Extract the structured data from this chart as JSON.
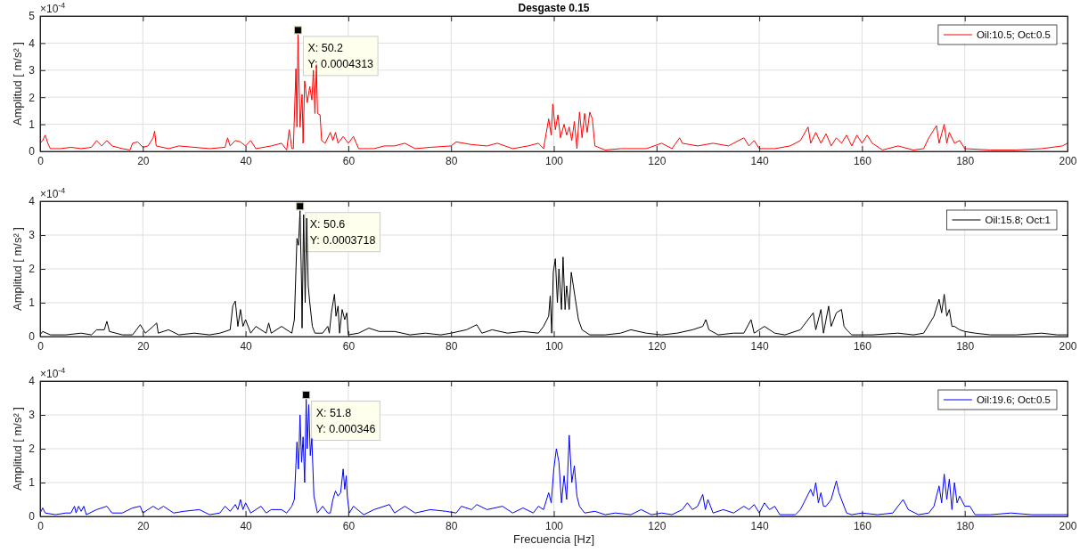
{
  "chart_data": [
    {
      "type": "line",
      "title": "Desgaste 0.15",
      "ylabel": "Amplitud [ m/s² ]",
      "xlim": [
        0,
        200
      ],
      "xticks": [
        0,
        20,
        40,
        60,
        80,
        100,
        120,
        140,
        160,
        180,
        200
      ],
      "ylim": [
        0,
        5
      ],
      "yticks": [
        0,
        1,
        2,
        3,
        4,
        5
      ],
      "grid": true,
      "legend": "top right",
      "annotations": [
        "×10$^{-4}$",
        {
          "text": "X: 50.2\nY: 0.0004313",
          "x": 50.2,
          "y": 4.313
        }
      ],
      "series": [
        {
          "name": "Oil:10.5; Oct:0.5",
          "color": "#ff0000",
          "x": [
            0,
            0.5,
            1,
            1.5,
            2,
            4,
            6,
            8,
            10,
            11,
            12,
            13,
            14,
            16,
            17.5,
            18,
            19,
            20,
            21,
            22,
            22.3,
            22.6,
            25,
            27,
            30,
            33,
            36,
            36.5,
            37,
            38,
            39,
            40,
            41,
            42,
            45,
            47,
            48,
            48.5,
            49,
            49.3,
            49.8,
            50,
            50.2,
            50.6,
            51,
            51.2,
            51.5,
            52,
            52.5,
            52.9,
            53.2,
            53.5,
            53.8,
            54,
            54.5,
            54.8,
            55.5,
            56.5,
            57,
            57.5,
            58,
            59,
            60,
            61,
            62,
            65,
            67,
            69,
            71,
            73,
            76,
            80,
            81,
            84,
            87,
            89,
            92,
            95,
            97,
            98,
            99,
            99.5,
            99.8,
            100.3,
            100.8,
            101.3,
            102,
            102.5,
            103,
            103.5,
            104,
            104.5,
            105,
            105.5,
            106,
            106.5,
            107,
            107.5,
            108,
            110,
            113,
            118,
            121,
            123,
            124.5,
            125,
            128,
            131,
            134,
            137,
            138,
            139,
            140,
            143,
            146,
            148,
            149.5,
            150,
            151,
            152,
            153,
            154,
            155,
            156,
            157,
            158,
            159,
            160,
            161,
            162,
            164,
            167,
            170,
            172,
            173,
            174.5,
            175,
            176,
            176.5,
            177,
            178,
            179,
            180,
            185,
            190,
            195,
            199,
            200
          ],
          "values": [
            0.3,
            0.4,
            0.6,
            0.3,
            0.1,
            0.1,
            0.15,
            0.1,
            0.15,
            0.4,
            0.2,
            0.4,
            0.2,
            0.1,
            0.05,
            0.3,
            0.35,
            0.15,
            0.2,
            0.5,
            0.75,
            0.2,
            0.1,
            0.2,
            0.15,
            0.1,
            0.15,
            0.5,
            0.2,
            0.4,
            0.35,
            0.2,
            0.4,
            0.1,
            0.2,
            0.3,
            0.05,
            0.8,
            0.1,
            0.1,
            3.05,
            0.9,
            4.313,
            0.9,
            2.1,
            0.3,
            2.6,
            1.8,
            2.4,
            1.9,
            3.0,
            1.4,
            3.2,
            1.4,
            1.35,
            0.4,
            0.3,
            0.7,
            0.4,
            0.7,
            0.3,
            0.55,
            0.3,
            0.55,
            0.1,
            0.1,
            0.2,
            0.2,
            0.3,
            0.1,
            0.15,
            0.2,
            0.35,
            0.25,
            0.2,
            0.3,
            0.1,
            0.2,
            0.3,
            0.1,
            1.2,
            0.6,
            1.75,
            0.8,
            1.35,
            0.5,
            1.0,
            0.6,
            0.9,
            0.4,
            1.1,
            0.1,
            1.45,
            0.5,
            1.4,
            0.7,
            1.45,
            1.2,
            0.2,
            0.05,
            0.1,
            0.1,
            0.3,
            0.1,
            0.5,
            0.3,
            0.2,
            0.3,
            0.2,
            0.5,
            0.2,
            0.4,
            0.1,
            0.1,
            0.2,
            0.4,
            0.9,
            0.3,
            0.7,
            0.3,
            0.65,
            0.2,
            0.5,
            0.3,
            0.6,
            0.2,
            0.6,
            0.3,
            0.6,
            0.3,
            0.05,
            0.2,
            0.05,
            0.1,
            0.5,
            0.95,
            0.3,
            1.0,
            0.3,
            0.7,
            0.3,
            0.4,
            0.1,
            0.05,
            0.05,
            0.1,
            0.2,
            0.3
          ]
        }
      ]
    },
    {
      "type": "line",
      "ylabel": "Amplitud [ m/s² ]",
      "xlim": [
        0,
        200
      ],
      "xticks": [
        0,
        20,
        40,
        60,
        80,
        100,
        120,
        140,
        160,
        180,
        200
      ],
      "ylim": [
        0,
        4
      ],
      "yticks": [
        0,
        1,
        2,
        3,
        4
      ],
      "grid": true,
      "legend": "top right",
      "annotations": [
        "×10$^{-4}$",
        {
          "text": "X: 50.6\nY: 0.0003718",
          "x": 50.6,
          "y": 3.718
        }
      ],
      "series": [
        {
          "name": "Oil:15.8; Oct:1",
          "color": "#000000",
          "x": [
            0,
            0.5,
            2,
            5,
            8,
            10,
            11,
            12.5,
            13,
            13.5,
            16,
            18,
            19.5,
            20.5,
            22,
            22.7,
            23,
            25,
            27,
            30,
            33,
            35,
            37,
            37.5,
            38,
            38.5,
            39,
            39.5,
            40,
            41,
            42,
            44,
            44.5,
            45,
            47,
            49,
            49.5,
            50,
            50.3,
            50.6,
            50.9,
            51,
            51.3,
            51.6,
            51.9,
            52.2,
            52.5,
            53,
            53.5,
            55,
            56,
            56.3,
            56.7,
            57.3,
            57.6,
            58,
            58.3,
            58.8,
            59.3,
            59.7,
            60,
            62,
            64,
            66,
            69,
            72,
            75,
            78,
            80,
            83,
            85,
            86,
            88,
            91,
            94,
            97,
            98,
            99,
            99.3,
            99.6,
            99.9,
            100.3,
            100.7,
            101,
            101.5,
            101.8,
            102.2,
            102.5,
            103,
            103.4,
            103.8,
            104.3,
            104.8,
            105.5,
            107,
            110,
            113,
            115,
            118,
            121,
            124,
            127,
            129,
            129.6,
            130.2,
            132,
            135,
            137,
            138.4,
            139,
            141,
            143,
            145,
            148,
            149.5,
            150.5,
            151,
            152,
            152.5,
            153.5,
            154,
            155,
            156,
            156.5,
            157,
            158,
            162,
            167,
            170,
            172,
            174,
            175,
            175.5,
            176,
            176.5,
            177,
            177.5,
            178,
            179,
            180,
            182,
            185,
            190,
            195,
            198,
            200
          ],
          "values": [
            0.05,
            0.15,
            0.05,
            0.05,
            0.1,
            0.05,
            0.2,
            0.2,
            0.45,
            0.15,
            0.05,
            0.05,
            0.35,
            0.1,
            0.3,
            0.4,
            0.1,
            0.2,
            0.05,
            0.1,
            0.05,
            0.1,
            0.2,
            0.9,
            1.05,
            0.3,
            0.8,
            0.3,
            0.5,
            0.1,
            0.3,
            0.1,
            0.4,
            0.1,
            0.3,
            0.1,
            0.5,
            2.9,
            2.7,
            3.718,
            1.5,
            0.25,
            3.6,
            1.0,
            3.5,
            1.5,
            1.0,
            0.3,
            0.1,
            0.1,
            0.3,
            0.1,
            0.7,
            1.25,
            0.6,
            0.9,
            0.1,
            0.8,
            0.5,
            0.7,
            0.05,
            0.1,
            0.25,
            0.15,
            0.15,
            0.05,
            0.1,
            0.05,
            0.1,
            0.2,
            0.35,
            0.1,
            0.2,
            0.1,
            0.15,
            0.1,
            0.3,
            0.6,
            1.2,
            0.1,
            1.9,
            2.3,
            1.0,
            2.0,
            0.8,
            2.35,
            0.8,
            1.5,
            0.8,
            1.9,
            1.5,
            1.0,
            0.5,
            0.2,
            0.05,
            0.05,
            0.1,
            0.2,
            0.1,
            0.05,
            0.1,
            0.2,
            0.3,
            0.5,
            0.2,
            0.05,
            0.1,
            0.1,
            0.5,
            0.1,
            0.3,
            0.1,
            0.05,
            0.2,
            0.5,
            0.7,
            0.2,
            0.8,
            0.1,
            0.9,
            0.3,
            0.7,
            0.8,
            0.3,
            0.2,
            0.05,
            0.05,
            0.1,
            0.05,
            0.1,
            0.6,
            1.1,
            0.7,
            1.25,
            0.6,
            0.8,
            0.3,
            0.3,
            0.2,
            0.15,
            0.1,
            0.05,
            0.05,
            0.1,
            0.05,
            0.05
          ]
        }
      ]
    },
    {
      "type": "line",
      "ylabel": "Amplitud [ m/s² ]",
      "xlabel": "Frecuencia [Hz]",
      "xlim": [
        0,
        200
      ],
      "xticks": [
        0,
        20,
        40,
        60,
        80,
        100,
        120,
        140,
        160,
        180,
        200
      ],
      "ylim": [
        0,
        4
      ],
      "yticks": [
        0,
        1,
        2,
        3,
        4
      ],
      "grid": true,
      "legend": "top right",
      "annotations": [
        "×10$^{-4}$",
        {
          "text": "X: 51.8\nY: 0.000346",
          "x": 51.8,
          "y": 3.46
        }
      ],
      "series": [
        {
          "name": "Oil:19.6; Oct:0.5",
          "color": "#0000ff",
          "x": [
            0,
            0.5,
            1,
            3,
            5,
            6,
            6.7,
            7,
            7.5,
            8,
            8.5,
            9,
            11,
            13,
            14,
            16,
            18,
            19.5,
            20,
            22,
            23,
            24,
            26,
            28,
            31,
            33,
            35,
            36,
            37,
            38,
            38.5,
            39,
            39.5,
            40,
            41,
            43,
            44,
            45,
            47,
            48,
            49,
            49.5,
            50,
            50.3,
            50.6,
            50.9,
            51.2,
            51.5,
            51.8,
            52,
            52.3,
            52.6,
            52.9,
            53.3,
            54,
            55,
            56,
            56.5,
            57,
            57.5,
            58,
            58.5,
            59,
            59.3,
            59.6,
            59.8,
            60.2,
            61,
            63,
            65,
            68,
            69,
            71,
            73,
            76,
            79,
            81,
            82,
            84,
            85,
            87,
            90,
            92,
            94,
            96,
            97,
            98,
            99,
            99.5,
            100,
            100.5,
            101,
            101.5,
            102,
            102.5,
            103,
            103.5,
            104,
            104.5,
            105,
            106,
            108,
            110,
            112,
            115,
            117,
            119,
            121,
            123,
            125,
            126,
            127,
            128,
            129,
            129.5,
            130,
            131,
            133,
            135,
            137,
            138,
            139,
            140,
            141,
            142,
            143,
            144,
            147,
            148,
            149,
            150,
            150.5,
            151,
            151.5,
            152,
            152.5,
            153,
            154,
            155,
            155.5,
            156,
            157,
            158,
            160,
            163,
            166,
            168,
            169,
            171,
            173,
            174,
            175,
            175.5,
            176,
            176.5,
            177,
            177.5,
            178,
            178.5,
            179,
            180,
            181,
            182,
            185,
            189,
            193,
            197,
            200
          ],
          "values": [
            0.1,
            0.25,
            0.1,
            0.05,
            0.1,
            0.1,
            0.3,
            0.1,
            0.3,
            0.15,
            0.3,
            0.05,
            0.2,
            0.3,
            0.1,
            0.1,
            0.25,
            0.3,
            0.1,
            0.3,
            0.2,
            0.3,
            0.1,
            0.15,
            0.2,
            0.05,
            0.1,
            0.3,
            0.15,
            0.35,
            0.2,
            0.5,
            0.2,
            0.4,
            0.1,
            0.3,
            0.1,
            0.2,
            0.2,
            0.1,
            0.3,
            0.5,
            2.2,
            1.4,
            3.0,
            1.6,
            2.35,
            1.0,
            3.46,
            2.0,
            3.3,
            1.8,
            2.3,
            0.6,
            0.1,
            0.3,
            0.1,
            0.1,
            0.5,
            0.75,
            0.6,
            0.7,
            1.4,
            0.8,
            1.2,
            0.6,
            0.1,
            0.3,
            0.05,
            0.2,
            0.35,
            0.1,
            0.3,
            0.1,
            0.2,
            0.15,
            0.1,
            0.3,
            0.2,
            0.35,
            0.2,
            0.3,
            0.1,
            0.25,
            0.1,
            0.3,
            0.2,
            0.7,
            0.4,
            1.4,
            2.0,
            1.6,
            0.4,
            1.2,
            0.5,
            2.4,
            1.0,
            1.5,
            0.6,
            0.3,
            0.1,
            0.15,
            0.05,
            0.1,
            0.05,
            0.2,
            0.05,
            0.1,
            0.05,
            0.2,
            0.4,
            0.2,
            0.3,
            0.65,
            0.2,
            0.5,
            0.1,
            0.2,
            0.1,
            0.3,
            0.2,
            0.35,
            0.1,
            0.4,
            0.2,
            0.3,
            0.05,
            0.05,
            0.2,
            0.5,
            0.8,
            0.6,
            1.0,
            0.4,
            0.7,
            0.3,
            0.3,
            0.5,
            1.05,
            0.7,
            0.5,
            0.1,
            0.05,
            0.1,
            0.05,
            0.1,
            0.5,
            0.2,
            0.05,
            0.1,
            0.3,
            0.9,
            0.4,
            1.25,
            0.5,
            1.1,
            0.2,
            1.0,
            0.4,
            0.6,
            0.3,
            0.3,
            0.05,
            0.05,
            0.1,
            0.05,
            0.05,
            0.05
          ]
        }
      ]
    }
  ]
}
